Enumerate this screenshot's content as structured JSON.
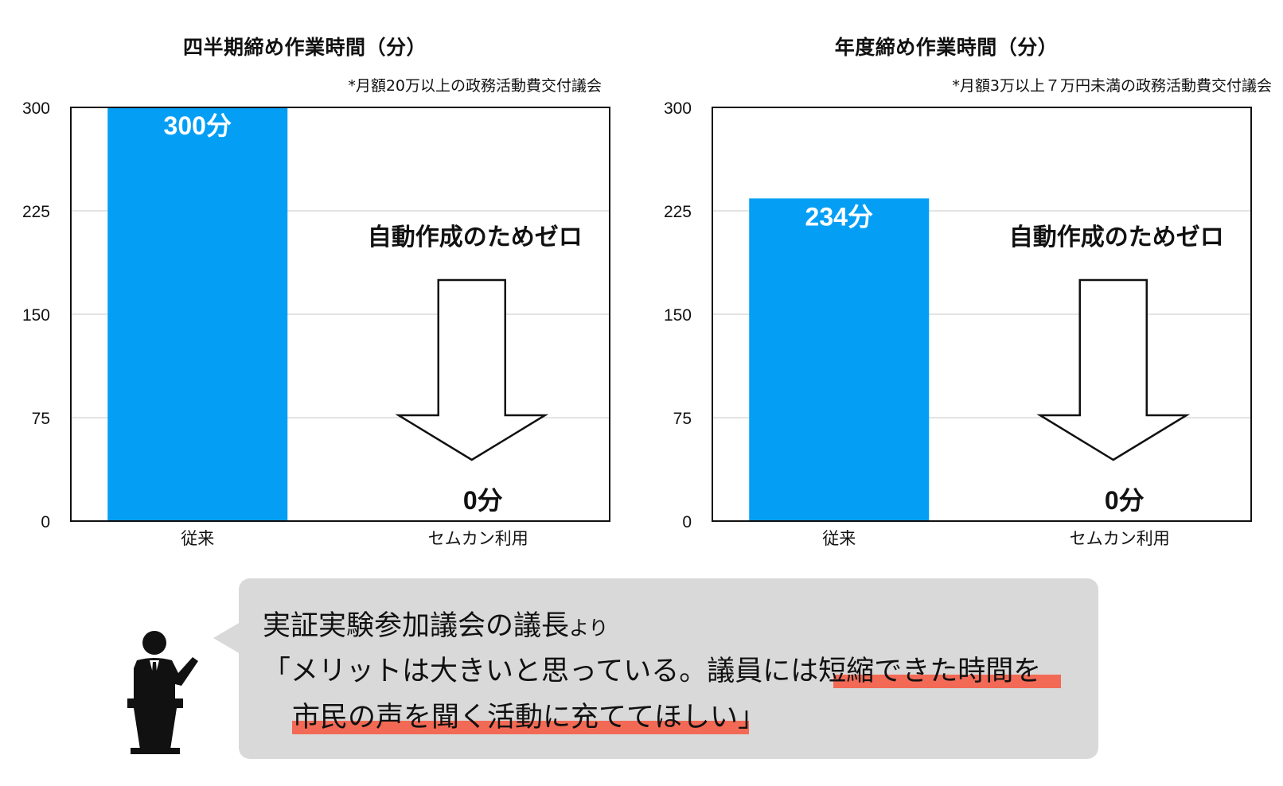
{
  "chart_data": [
    {
      "type": "bar",
      "title": "四半期締め作業時間（分）",
      "note": "*月額20万以上の政務活動費交付議会",
      "categories": [
        "従来",
        "セムカン利用"
      ],
      "values": [
        300,
        0
      ],
      "value_labels": [
        "300分",
        "0分"
      ],
      "ylim": [
        0,
        300
      ],
      "yticks": [
        "0",
        "75",
        "150",
        "225",
        "300"
      ],
      "grid": true,
      "bar_color": "#049ff5",
      "annotation": "自動作成のためゼロ"
    },
    {
      "type": "bar",
      "title": "年度締め作業時間（分）",
      "note": "*月額3万以上７万円未満の政務活動費交付議会",
      "categories": [
        "従来",
        "セムカン利用"
      ],
      "values": [
        234,
        0
      ],
      "value_labels": [
        "234分",
        "0分"
      ],
      "ylim": [
        0,
        300
      ],
      "yticks": [
        "0",
        "75",
        "150",
        "225",
        "300"
      ],
      "grid": true,
      "bar_color": "#049ff5",
      "annotation": "自動作成のためゼロ"
    }
  ],
  "quote": {
    "speaker_main": "実証実験参加議会の議長",
    "speaker_suffix": "より",
    "line2_a": "「メリットは大きいと思っている。議員には",
    "line2_b": "短縮できた時間を",
    "line3_a": "市民の声を聞く活動に充ててほしい",
    "line3_b": "」",
    "highlight_color": "#f26a55",
    "bubble_color": "#d9d9d9",
    "icon": "speaker-at-podium-icon"
  }
}
